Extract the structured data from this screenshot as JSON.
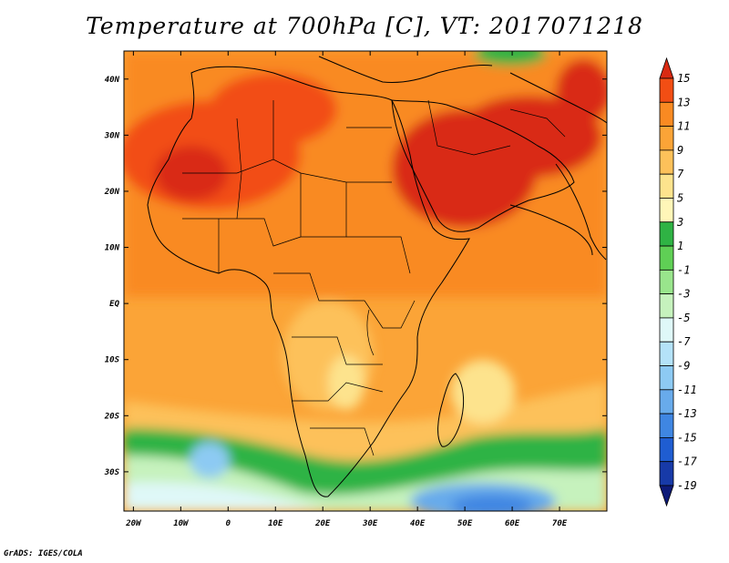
{
  "title": "Temperature at 700hPa [C], VT: 2017071218",
  "credit": "GrADS: IGES/COLA",
  "map": {
    "lon_range": [
      -22,
      80
    ],
    "lat_range": [
      -37,
      45
    ],
    "lat_labels": [
      {
        "lat": 40,
        "text": "40N"
      },
      {
        "lat": 30,
        "text": "30N"
      },
      {
        "lat": 20,
        "text": "20N"
      },
      {
        "lat": 10,
        "text": "10N"
      },
      {
        "lat": 0,
        "text": "EQ"
      },
      {
        "lat": -10,
        "text": "10S"
      },
      {
        "lat": -20,
        "text": "20S"
      },
      {
        "lat": -30,
        "text": "30S"
      }
    ],
    "lon_labels": [
      {
        "lon": -20,
        "text": "20W"
      },
      {
        "lon": -10,
        "text": "10W"
      },
      {
        "lon": 0,
        "text": "0"
      },
      {
        "lon": 10,
        "text": "10E"
      },
      {
        "lon": 20,
        "text": "20E"
      },
      {
        "lon": 30,
        "text": "30E"
      },
      {
        "lon": 40,
        "text": "40E"
      },
      {
        "lon": 50,
        "text": "50E"
      },
      {
        "lon": 60,
        "text": "60E"
      },
      {
        "lon": 70,
        "text": "70E"
      }
    ]
  },
  "colorbar": {
    "levels": [
      "15",
      "13",
      "11",
      "9",
      "7",
      "5",
      "3",
      "1",
      "-1",
      "-3",
      "-5",
      "-7",
      "-9",
      "-11",
      "-13",
      "-15",
      "-17",
      "-19"
    ],
    "colors": [
      "#d92a12",
      "#f24e14",
      "#f98a22",
      "#fba437",
      "#fdc15a",
      "#fde38d",
      "#fff6b8",
      "#2fb344",
      "#5fcf55",
      "#99e58c",
      "#c6f2bd",
      "#dff8f8",
      "#b4e2f8",
      "#8dcaf3",
      "#68abeb",
      "#3f86e2",
      "#1f5dd1",
      "#173aa8",
      "#0d1a78"
    ]
  }
}
